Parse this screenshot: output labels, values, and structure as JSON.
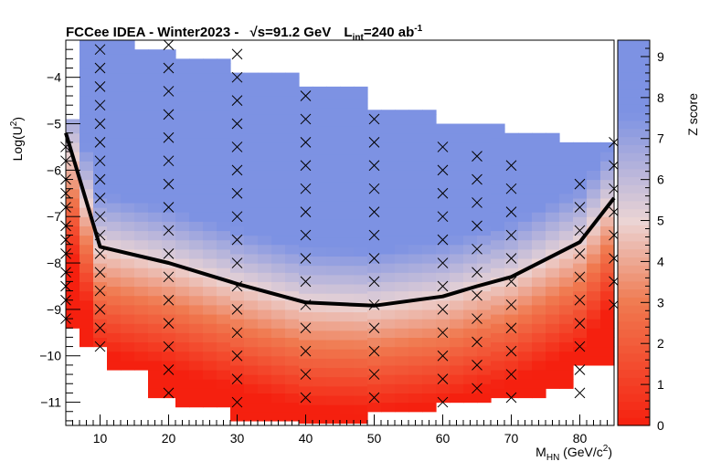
{
  "chart_data": {
    "type": "heatmap",
    "title": {
      "experiment": "FCCee IDEA - Winter2023 -",
      "sqrt_s": "s=91.2 GeV",
      "lumi_L": "L",
      "lumi_sub": "int",
      "lumi_value": "=240 ab",
      "lumi_sup": "-1"
    },
    "xlabel": {
      "main": "M",
      "sub": "HN",
      "unit": " (GeV/c",
      "unit_sup": "2",
      "unit_end": ")"
    },
    "ylabel": {
      "main": "Log(U",
      "sup": "2",
      "end": ")"
    },
    "zlabel": "Z score",
    "xlim": [
      5,
      85
    ],
    "ylim": [
      -11.5,
      -3.2
    ],
    "zlim": [
      0,
      9.4
    ],
    "x_ticks": [
      10,
      20,
      30,
      40,
      50,
      60,
      70,
      80
    ],
    "y_ticks": [
      -4,
      -5,
      -6,
      -7,
      -8,
      -9,
      -10,
      -11
    ],
    "z_ticks": [
      0,
      1,
      2,
      3,
      4,
      5,
      6,
      7,
      8,
      9
    ],
    "contour_z": 5,
    "contour_x": [
      5,
      10,
      20,
      30,
      40,
      50,
      60,
      65,
      70,
      80,
      85
    ],
    "contour_y": [
      -5.2,
      -7.65,
      -8.0,
      -8.45,
      -8.85,
      -8.92,
      -8.72,
      -8.5,
      -8.3,
      -7.55,
      -6.6
    ],
    "signal_points": [
      {
        "mass": 5,
        "logU2": [
          -5.5,
          -5.8,
          -6.2,
          -6.5,
          -6.8,
          -7.2,
          -7.5,
          -7.8,
          -8.2,
          -8.5,
          -8.8,
          -9.2
        ]
      },
      {
        "mass": 10,
        "logU2": [
          -3.4,
          -3.8,
          -4.2,
          -4.6,
          -5.0,
          -5.4,
          -5.8,
          -6.2,
          -6.6,
          -7.0,
          -7.4,
          -7.8,
          -8.2,
          -8.6,
          -9.0,
          -9.4,
          -9.8
        ]
      },
      {
        "mass": 20,
        "logU2": [
          -3.3,
          -3.8,
          -4.3,
          -4.8,
          -5.3,
          -5.8,
          -6.3,
          -6.8,
          -7.3,
          -7.8,
          -8.3,
          -8.8,
          -9.3,
          -9.8,
          -10.3,
          -10.8
        ]
      },
      {
        "mass": 30,
        "logU2": [
          -3.5,
          -4.0,
          -4.5,
          -5.0,
          -5.5,
          -6.0,
          -6.5,
          -7.0,
          -7.5,
          -8.0,
          -8.5,
          -9.0,
          -9.5,
          -10.0,
          -10.5,
          -11.0
        ]
      },
      {
        "mass": 40,
        "logU2": [
          -4.4,
          -4.9,
          -5.4,
          -5.9,
          -6.4,
          -6.9,
          -7.4,
          -7.9,
          -8.4,
          -8.9,
          -9.4,
          -9.9,
          -10.4,
          -10.9
        ]
      },
      {
        "mass": 50,
        "logU2": [
          -4.9,
          -5.4,
          -5.9,
          -6.4,
          -6.9,
          -7.4,
          -7.9,
          -8.4,
          -8.9,
          -9.4,
          -9.9,
          -10.4,
          -10.9
        ]
      },
      {
        "mass": 60,
        "logU2": [
          -5.5,
          -6.0,
          -6.5,
          -7.0,
          -7.5,
          -8.0,
          -8.5,
          -9.0,
          -9.5,
          -10.0,
          -10.5,
          -11.0
        ]
      },
      {
        "mass": 65,
        "logU2": [
          -5.7,
          -6.2,
          -6.7,
          -7.2,
          -7.7,
          -8.2,
          -8.7,
          -9.2,
          -9.7,
          -10.2,
          -10.7
        ]
      },
      {
        "mass": 70,
        "logU2": [
          -5.9,
          -6.4,
          -6.9,
          -7.4,
          -7.9,
          -8.4,
          -8.9,
          -9.4,
          -9.9,
          -10.4,
          -10.9
        ]
      },
      {
        "mass": 80,
        "logU2": [
          -6.3,
          -6.8,
          -7.3,
          -7.8,
          -8.3,
          -8.8,
          -9.3,
          -9.8,
          -10.3,
          -10.8
        ]
      },
      {
        "mass": 85,
        "logU2": [
          -5.4,
          -5.9,
          -6.4,
          -6.9,
          -7.4,
          -7.9,
          -8.4,
          -8.9
        ]
      }
    ],
    "colors": {
      "high": "#7d92e3",
      "mid": "#ebd4d4",
      "orange": "#f07a50",
      "low": "#f5200f",
      "contour": "#000000",
      "marker": "#000000"
    }
  }
}
